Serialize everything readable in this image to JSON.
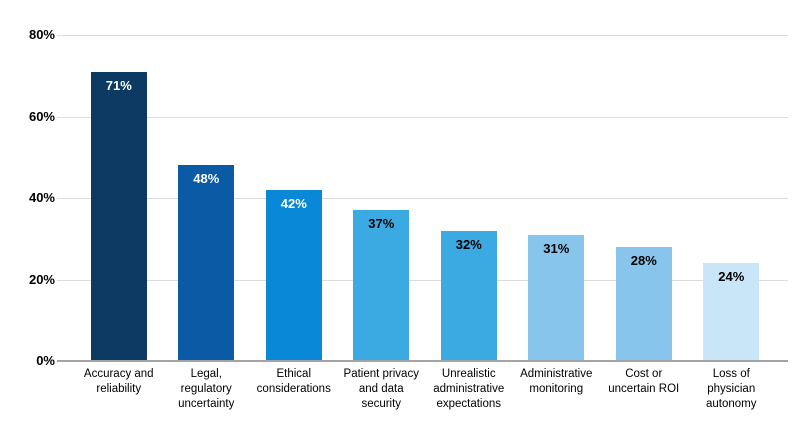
{
  "chart_data": {
    "type": "bar",
    "title": "",
    "xlabel": "",
    "ylabel": "",
    "categories": [
      "Accuracy and\nreliability",
      "Legal,\nregulatory\nuncertainty",
      "Ethical\nconsiderations",
      "Patient privacy\nand data\nsecurity",
      "Unrealistic\nadministrative\nexpectations",
      "Administrative\nmonitoring",
      "Cost or\nuncertain ROI",
      "Loss of\nphysician\nautonomy"
    ],
    "values": [
      71,
      48,
      42,
      37,
      32,
      31,
      28,
      24
    ],
    "value_labels": [
      "71%",
      "48%",
      "42%",
      "37%",
      "32%",
      "31%",
      "28%",
      "24%"
    ],
    "bar_colors": [
      "#0d3a63",
      "#0a5aa6",
      "#0988d7",
      "#3caae2",
      "#3caae2",
      "#87c5ed",
      "#87c5ed",
      "#c9e5f8"
    ],
    "value_label_colors": [
      "#ffffff",
      "#ffffff",
      "#ffffff",
      "#000000",
      "#000000",
      "#000000",
      "#000000",
      "#000000"
    ],
    "ylim": [
      0,
      80
    ],
    "yticks": [
      "80%",
      "60%",
      "40%",
      "20%",
      "0%"
    ],
    "grid": true,
    "legend": false,
    "legend_position": "none"
  },
  "axis_style": {
    "gridline_color": "#dcdcdc",
    "baseline_color": "#a3a3a3",
    "tick_text_color": "#000000"
  }
}
